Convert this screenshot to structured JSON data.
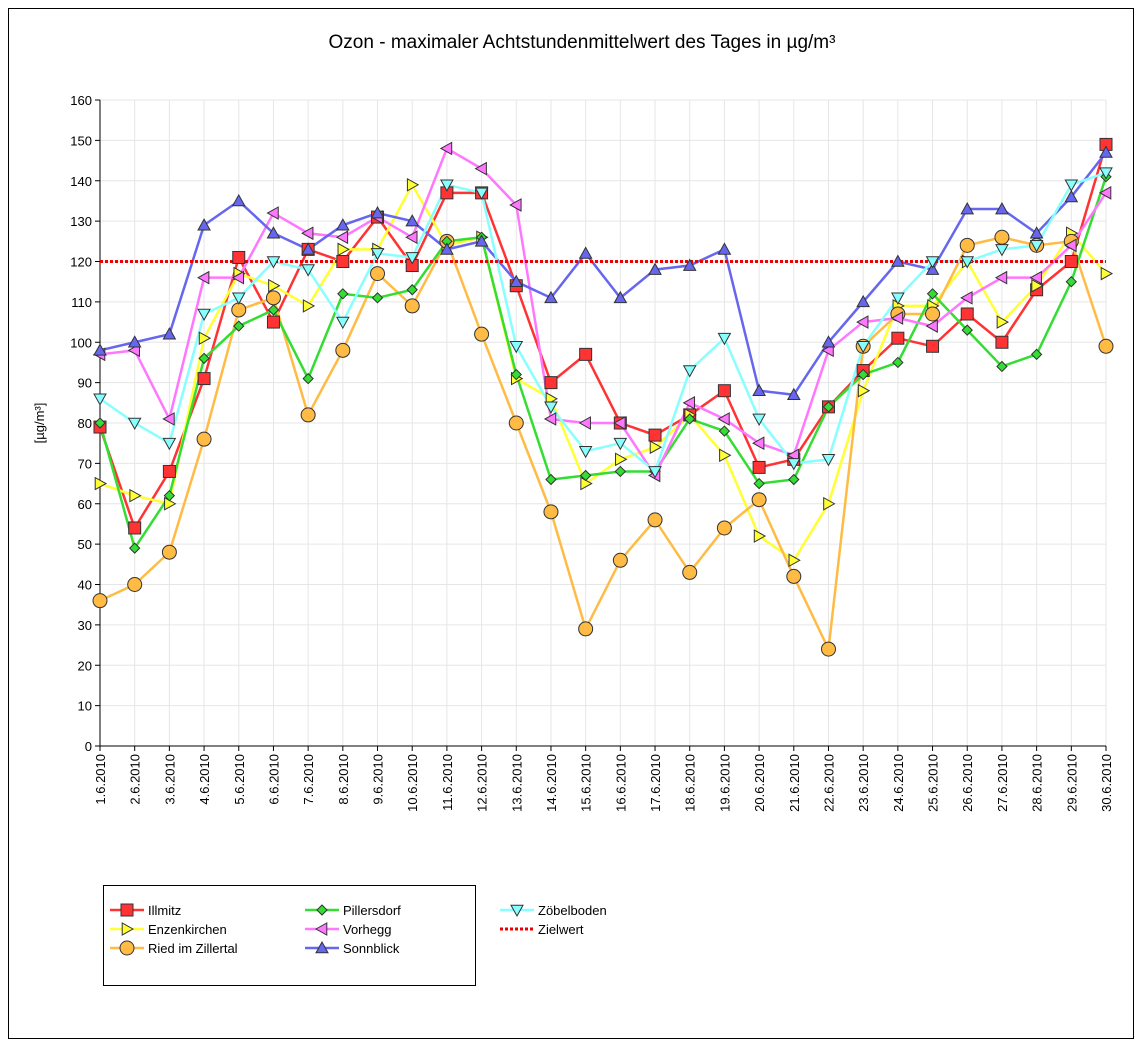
{
  "chart_data": {
    "type": "line",
    "title": "Ozon -  maximaler Achtstundenmittelwert des Tages in µg/m³",
    "y_label": "[µg/m³]",
    "categories": [
      "1.6.2010",
      "2.6.2010",
      "3.6.2010",
      "4.6.2010",
      "5.6.2010",
      "6.6.2010",
      "7.6.2010",
      "8.6.2010",
      "9.6.2010",
      "10.6.2010",
      "11.6.2010",
      "12.6.2010",
      "13.6.2010",
      "14.6.2010",
      "15.6.2010",
      "16.6.2010",
      "17.6.2010",
      "18.6.2010",
      "19.6.2010",
      "20.6.2010",
      "21.6.2010",
      "22.6.2010",
      "23.6.2010",
      "24.6.2010",
      "25.6.2010",
      "26.6.2010",
      "27.6.2010",
      "28.6.2010",
      "29.6.2010",
      "30.6.2010"
    ],
    "ylim": [
      0,
      160
    ],
    "yticks": [
      0,
      10,
      20,
      30,
      40,
      50,
      60,
      70,
      80,
      90,
      100,
      110,
      120,
      130,
      140,
      150,
      160
    ],
    "grid": true,
    "series": [
      {
        "name": "Illmitz",
        "color": "#ff3333",
        "marker": "square",
        "values": [
          79,
          54,
          68,
          91,
          121,
          105,
          123,
          120,
          131,
          119,
          137,
          137,
          114,
          90,
          97,
          80,
          77,
          82,
          88,
          69,
          71,
          84,
          93,
          101,
          99,
          107,
          100,
          113,
          120,
          149
        ]
      },
      {
        "name": "Enzenkirchen",
        "color": "#ffff33",
        "marker": "triangle-right",
        "values": [
          65,
          62,
          60,
          101,
          117,
          114,
          109,
          123,
          123,
          139,
          124,
          126,
          91,
          86,
          65,
          71,
          74,
          82,
          72,
          52,
          46,
          60,
          88,
          109,
          109,
          120,
          105,
          114,
          127,
          117
        ]
      },
      {
        "name": "Ried im Zillertal",
        "color": "#ffbb44",
        "marker": "circle",
        "values": [
          36,
          40,
          48,
          76,
          108,
          111,
          82,
          98,
          117,
          109,
          125,
          102,
          80,
          58,
          29,
          46,
          56,
          43,
          54,
          61,
          42,
          24,
          99,
          107,
          107,
          124,
          126,
          124,
          125,
          99
        ]
      },
      {
        "name": "Pillersdorf",
        "color": "#33dd33",
        "marker": "diamond",
        "values": [
          80,
          49,
          62,
          96,
          104,
          108,
          91,
          112,
          111,
          113,
          125,
          126,
          92,
          66,
          67,
          68,
          68,
          81,
          78,
          65,
          66,
          84,
          92,
          95,
          112,
          103,
          94,
          97,
          115,
          141
        ]
      },
      {
        "name": "Vorhegg",
        "color": "#ff77ff",
        "marker": "triangle-left",
        "values": [
          97,
          98,
          81,
          116,
          116,
          132,
          127,
          126,
          131,
          126,
          148,
          143,
          134,
          81,
          80,
          80,
          67,
          85,
          81,
          75,
          72,
          98,
          105,
          106,
          104,
          111,
          116,
          116,
          124,
          137
        ]
      },
      {
        "name": "Sonnblick",
        "color": "#6666ee",
        "marker": "triangle-up",
        "values": [
          98,
          100,
          102,
          129,
          135,
          127,
          123,
          129,
          132,
          130,
          123,
          125,
          115,
          111,
          122,
          111,
          118,
          119,
          123,
          88,
          87,
          100,
          110,
          120,
          118,
          133,
          133,
          127,
          136,
          147
        ]
      },
      {
        "name": "Zöbelboden",
        "color": "#88ffff",
        "marker": "triangle-down",
        "values": [
          86,
          80,
          75,
          107,
          111,
          120,
          118,
          105,
          122,
          121,
          139,
          137,
          99,
          84,
          73,
          75,
          68,
          93,
          101,
          81,
          70,
          71,
          99,
          111,
          120,
          120,
          123,
          124,
          139,
          142
        ]
      }
    ],
    "target": {
      "name": "Zielwert",
      "value": 120,
      "color": "#ee0000"
    }
  }
}
